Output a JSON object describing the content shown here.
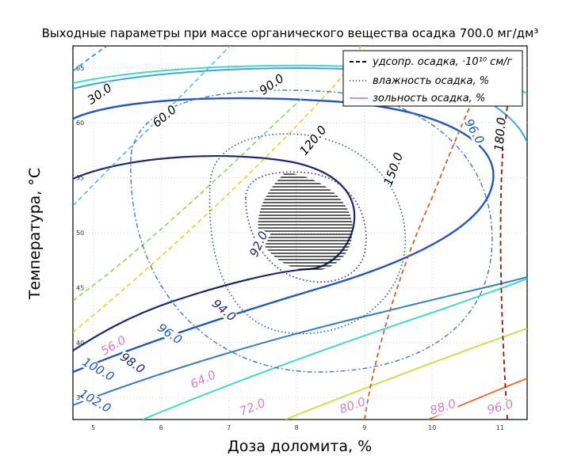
{
  "chart_data": {
    "type": "contour",
    "title": "Выходные параметры при массе органического вещества осадка 700.0 мг/дм³",
    "xlabel": "Доза доломита, %",
    "ylabel": "Температура, °С",
    "x_ticks": [
      "5",
      "6",
      "7",
      "8",
      "9",
      "10",
      "11"
    ],
    "y_ticks": [
      "65",
      "60",
      "55",
      "50",
      "45",
      "40",
      "35"
    ],
    "xlim": [
      4.7,
      11.4
    ],
    "ylim": [
      33.0,
      67.0
    ],
    "grid": true,
    "legend_position": "top-right",
    "legend": [
      {
        "label": "удсопр. осадка, ·10¹⁰ см/г",
        "style": "dashed",
        "color": "#000000"
      },
      {
        "label": "влажность осадка, %",
        "style": "dash-dot",
        "color": "#3a55a4"
      },
      {
        "label": "зольность осадка, %",
        "style": "solid",
        "color": "#e58bc2"
      }
    ],
    "series": [
      {
        "name": "удсопр. осадка, ·10¹⁰ см/г",
        "levels": [
          "30.0",
          "60.0",
          "90.0",
          "120.0",
          "150.0",
          "180.0"
        ]
      },
      {
        "name": "влажность осадка, %",
        "levels": [
          "92.0",
          "94.0",
          "96.0",
          "96.0",
          "98.0",
          "100.0",
          "102.0"
        ]
      },
      {
        "name": "зольность осадка, %",
        "levels": [
          "56.0",
          "64.0",
          "72.0",
          "80.0",
          "88.0",
          "96.0"
        ]
      }
    ],
    "optimal_region": "hatched"
  }
}
